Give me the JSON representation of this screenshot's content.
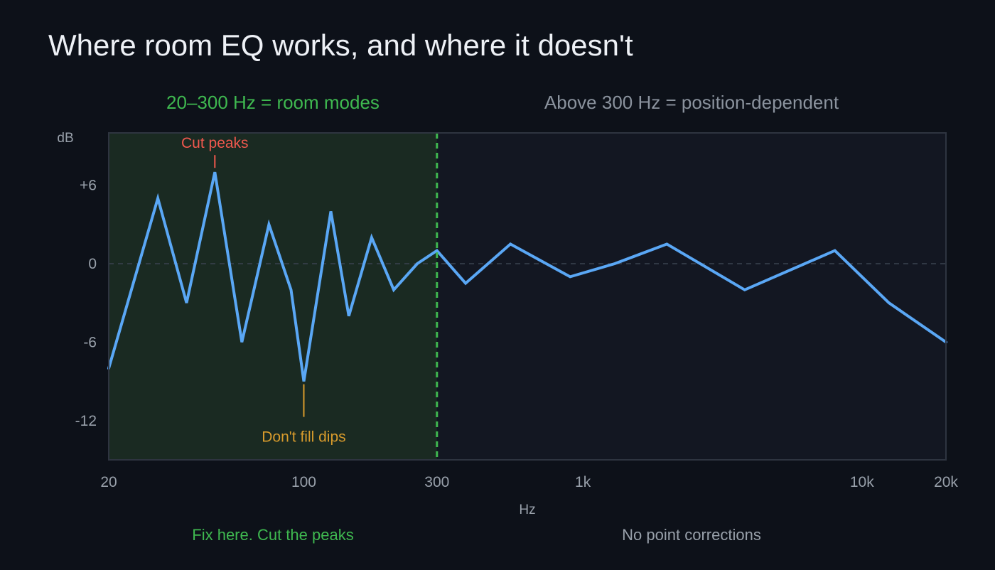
{
  "title": "Where room EQ works, and where it doesn't",
  "regions": {
    "low_label": "20–300 Hz = room modes",
    "high_label": "Above 300 Hz = position-dependent"
  },
  "footer": {
    "left": "Fix here. Cut the peaks",
    "right": "No point corrections"
  },
  "colors": {
    "background": "#0d1119",
    "plot_background": "#131722",
    "low_region_fill": "#1a2a22",
    "curve": "#5aa7f5",
    "divider": "#3fb950",
    "peak_annotation": "#f0584e",
    "dip_annotation": "#d89b2c"
  },
  "chart_data": {
    "type": "line",
    "xscale": "log",
    "xlim": [
      20,
      20000
    ],
    "ylim": [
      -15,
      10
    ],
    "xlabel": "Hz",
    "ylabel": "dB",
    "x_ticks": [
      {
        "value": 20,
        "label": "20"
      },
      {
        "value": 100,
        "label": "100"
      },
      {
        "value": 300,
        "label": "300"
      },
      {
        "value": 1000,
        "label": "1k"
      },
      {
        "value": 10000,
        "label": "10k"
      },
      {
        "value": 20000,
        "label": "20k"
      }
    ],
    "y_ticks": [
      {
        "value": 6,
        "label": "+6"
      },
      {
        "value": 0,
        "label": "0"
      },
      {
        "value": -6,
        "label": "-6"
      },
      {
        "value": -12,
        "label": "-12"
      }
    ],
    "zero_line": true,
    "divider_x": 300,
    "shaded_range": [
      20,
      300
    ],
    "series": [
      {
        "x": [
          20,
          30,
          38,
          48,
          60,
          75,
          90,
          100,
          125,
          145,
          175,
          210,
          255,
          300,
          380,
          550,
          900,
          1300,
          2000,
          3800,
          8000,
          12500,
          20000
        ],
        "values": [
          -8,
          5,
          -3,
          7,
          -6,
          3,
          -2,
          -9,
          4,
          -4,
          2,
          -2,
          0,
          1,
          -1.5,
          1.5,
          -1,
          0,
          1.5,
          -2,
          1,
          -3,
          -6
        ]
      }
    ],
    "annotations": [
      {
        "text": "Cut peaks",
        "x": 48,
        "y": 7,
        "kind": "peak"
      },
      {
        "text": "Don't fill dips",
        "x": 100,
        "y": -9,
        "kind": "dip"
      }
    ]
  }
}
